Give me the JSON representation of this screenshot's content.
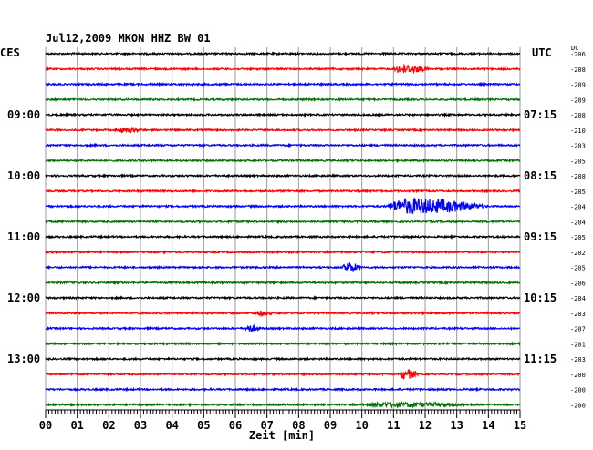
{
  "chart_data": {
    "type": "line",
    "title": "Jul12,2009   MKON HHZ BW 01",
    "left_zone_label": "CES",
    "right_zone_label": "UTC",
    "dc_header": "DC",
    "xlabel": "Zeit [min]",
    "xlim": [
      0,
      15
    ],
    "x_ticks": [
      "00",
      "01",
      "02",
      "03",
      "04",
      "05",
      "06",
      "07",
      "08",
      "09",
      "10",
      "11",
      "12",
      "13",
      "14",
      "15"
    ],
    "trace_colors": [
      "#000000",
      "#ff0000",
      "#0000ff",
      "#007000"
    ],
    "trace_count": 24,
    "left_hour_labels": [
      {
        "trace": 4,
        "text": "09:00"
      },
      {
        "trace": 8,
        "text": "10:00"
      },
      {
        "trace": 12,
        "text": "11:00"
      },
      {
        "trace": 16,
        "text": "12:00"
      },
      {
        "trace": 20,
        "text": "13:00"
      }
    ],
    "right_hour_labels": [
      {
        "trace": 4,
        "text": "07:15"
      },
      {
        "trace": 8,
        "text": "08:15"
      },
      {
        "trace": 12,
        "text": "09:15"
      },
      {
        "trace": 16,
        "text": "10:15"
      },
      {
        "trace": 20,
        "text": "11:15"
      }
    ],
    "dc_offsets": [
      "-206",
      "-208",
      "-209",
      "-209",
      "-208",
      "-210",
      "-203",
      "-205",
      "-208",
      "-205",
      "-204",
      "-204",
      "-205",
      "-202",
      "-205",
      "-206",
      "-204",
      "-203",
      "-207",
      "-201",
      "-203",
      "-200",
      "-200",
      "-200"
    ],
    "events": [
      {
        "trace": 1,
        "start_min": 11.0,
        "end_min": 12.2,
        "amplitude": 4
      },
      {
        "trace": 5,
        "start_min": 2.2,
        "end_min": 3.2,
        "amplitude": 2
      },
      {
        "trace": 10,
        "start_min": 10.8,
        "end_min": 14.0,
        "amplitude": 8
      },
      {
        "trace": 14,
        "start_min": 9.4,
        "end_min": 10.0,
        "amplitude": 5
      },
      {
        "trace": 17,
        "start_min": 6.6,
        "end_min": 7.2,
        "amplitude": 2
      },
      {
        "trace": 18,
        "start_min": 6.3,
        "end_min": 6.8,
        "amplitude": 3
      },
      {
        "trace": 21,
        "start_min": 11.2,
        "end_min": 11.8,
        "amplitude": 5
      },
      {
        "trace": 23,
        "start_min": 10.0,
        "end_min": 13.5,
        "amplitude": 2
      }
    ]
  }
}
